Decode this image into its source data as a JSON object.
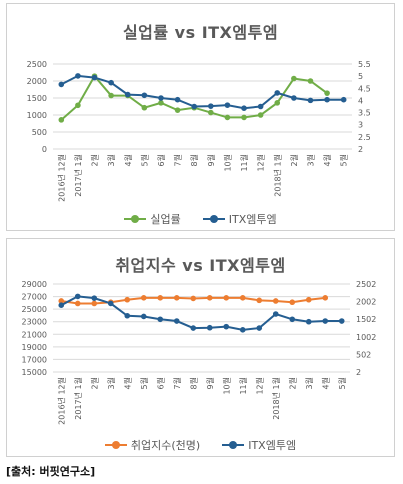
{
  "source_note": "[출처: 버핏연구소]",
  "chart_data": [
    {
      "type": "line",
      "title": "실업률 vs ITX엠투엠",
      "categories": [
        "2016년 12월",
        "2017년 1월",
        "2월",
        "3월",
        "4월",
        "5월",
        "6월",
        "7월",
        "8월",
        "9월",
        "10월",
        "11월",
        "12월",
        "2018년 1월",
        "2월",
        "3월",
        "4월",
        "5월"
      ],
      "series": [
        {
          "name": "실업률",
          "axis": "right",
          "color": "#70ad47",
          "values": [
            3.2,
            3.8,
            5.0,
            4.2,
            4.2,
            3.7,
            3.9,
            3.6,
            3.7,
            3.5,
            3.3,
            3.3,
            3.4,
            3.9,
            4.9,
            4.8,
            4.3,
            null
          ]
        },
        {
          "name": "ITX엠투엠",
          "axis": "left",
          "color": "#255e91",
          "values": [
            1900,
            2150,
            2100,
            1950,
            1600,
            1580,
            1500,
            1450,
            1250,
            1260,
            1290,
            1200,
            1250,
            1650,
            1500,
            1430,
            1450,
            1450
          ]
        }
      ],
      "y_left": {
        "min": 0,
        "max": 2500,
        "ticks": [
          0,
          500,
          1000,
          1500,
          2000,
          2500
        ]
      },
      "y_right": {
        "min": 2,
        "max": 5.5,
        "ticks": [
          2,
          2.5,
          3,
          3.5,
          4,
          4.5,
          5,
          5.5
        ]
      },
      "grid": true,
      "legend_position": "bottom"
    },
    {
      "type": "line",
      "title": "취업지수 vs ITX엠투엠",
      "categories": [
        "2016년 12월",
        "2017년 1월",
        "2월",
        "3월",
        "4월",
        "5월",
        "6월",
        "7월",
        "8월",
        "9월",
        "10월",
        "11월",
        "12월",
        "2018년 1월",
        "2월",
        "3월",
        "4월",
        "5월"
      ],
      "series": [
        {
          "name": "취업지수(천명)",
          "axis": "left",
          "color": "#ed7d31",
          "values": [
            26300,
            25900,
            25900,
            26100,
            26500,
            26800,
            26800,
            26800,
            26700,
            26800,
            26800,
            26800,
            26400,
            26300,
            26100,
            26500,
            26800,
            null
          ]
        },
        {
          "name": "ITX엠투엠",
          "axis": "right",
          "color": "#255e91",
          "values": [
            1900,
            2150,
            2100,
            1950,
            1600,
            1580,
            1500,
            1450,
            1250,
            1260,
            1290,
            1200,
            1250,
            1650,
            1500,
            1430,
            1450,
            1450
          ]
        }
      ],
      "y_left": {
        "min": 15000,
        "max": 29000,
        "ticks": [
          15000,
          17000,
          19000,
          21000,
          23000,
          25000,
          27000,
          29000
        ]
      },
      "y_right": {
        "min": 2,
        "max": 2502,
        "ticks": [
          2,
          502,
          1002,
          1502,
          2002,
          2502
        ]
      },
      "grid": true,
      "legend_position": "bottom"
    }
  ]
}
